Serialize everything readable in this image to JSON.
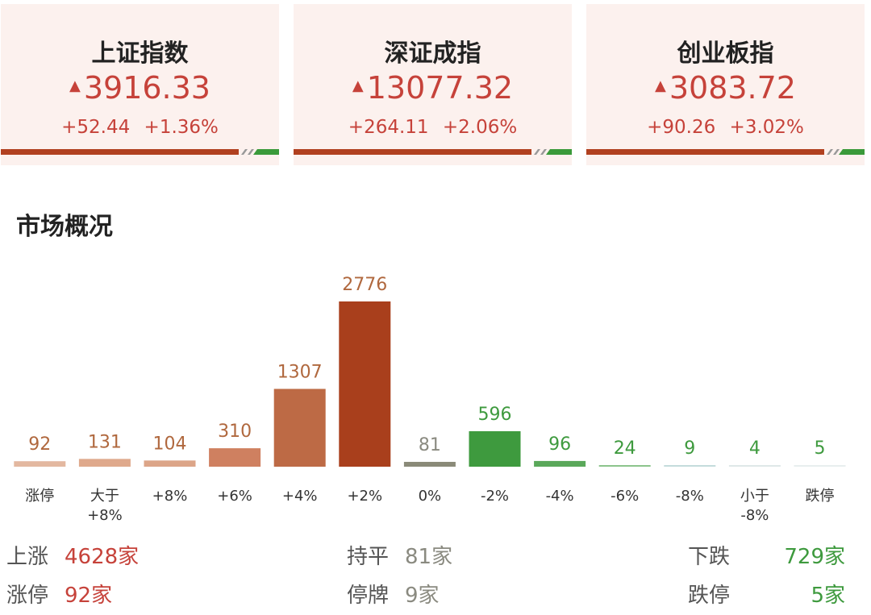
{
  "indices": [
    {
      "name": "上证指数",
      "value": "3916.33",
      "change": "+52.44",
      "pct": "+1.36%"
    },
    {
      "name": "深证成指",
      "value": "13077.32",
      "change": "+264.11",
      "pct": "+2.06%"
    },
    {
      "name": "创业板指",
      "value": "3083.72",
      "change": "+90.26",
      "pct": "+3.02%"
    }
  ],
  "chart_data": {
    "type": "bar",
    "title": "市场概况",
    "categories": [
      "涨停",
      "大于\n+8%",
      "+8%",
      "+6%",
      "+4%",
      "+2%",
      "0%",
      "-2%",
      "-4%",
      "-6%",
      "-8%",
      "小于\n-8%",
      "跌停"
    ],
    "values": [
      92,
      131,
      104,
      310,
      1307,
      2776,
      81,
      596,
      96,
      24,
      9,
      4,
      5
    ],
    "colors": [
      "#e3b8a0",
      "#dfa98c",
      "#dca588",
      "#cf8060",
      "#bd6a45",
      "#a93f1c",
      "#8a8a78",
      "#3e9a3e",
      "#5aa85a",
      "#8cc48c",
      "#c4dcdc",
      "#dfe8e8",
      "#e8eeee"
    ],
    "label_colors": [
      "#b0683e",
      "#b0683e",
      "#b0683e",
      "#b0683e",
      "#b0683e",
      "#b0683e",
      "#8a8a80",
      "#3e9a3e",
      "#3e9a3e",
      "#3e9a3e",
      "#3e9a3e",
      "#3e9a3e",
      "#3e9a3e"
    ]
  },
  "stats": [
    {
      "label": "上涨",
      "value": "4628家"
    },
    {
      "label": "持平",
      "value": "81家"
    },
    {
      "label": "下跌",
      "value": "729家"
    },
    {
      "label": "涨停",
      "value": "92家"
    },
    {
      "label": "停牌",
      "value": "9家"
    },
    {
      "label": "跌停",
      "value": "5家"
    }
  ]
}
